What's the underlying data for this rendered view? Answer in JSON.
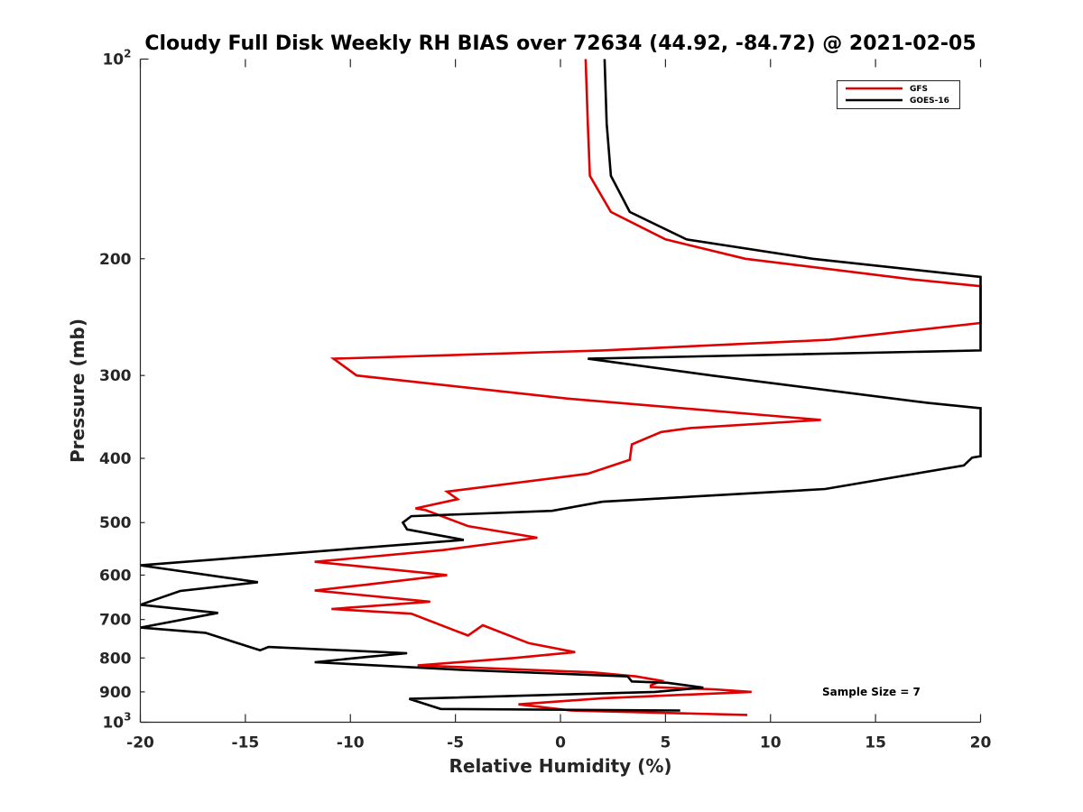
{
  "chart_data": {
    "type": "line",
    "title": "Cloudy Full Disk Weekly RH BIAS over 72634 (44.92, -84.72) @ 2021-02-05",
    "xlabel": "Relative Humidity (%)",
    "ylabel": "Pressure (mb)",
    "xlim": [
      -20,
      20
    ],
    "ylim": [
      100,
      1000
    ],
    "y_scale": "log",
    "y_reversed": true,
    "grid": false,
    "legend_position": "top-right",
    "x_ticks": [
      -20,
      -15,
      -10,
      -5,
      0,
      5,
      10,
      15,
      20
    ],
    "x_tick_labels": [
      "-20",
      "-15",
      "-10",
      "-5",
      "0",
      "5",
      "10",
      "15",
      "20"
    ],
    "y_ticks": [
      200,
      300,
      400,
      500,
      600,
      700,
      800,
      900
    ],
    "y_tick_labels": [
      "200",
      "300",
      "400",
      "500",
      "600",
      "700",
      "800",
      "900"
    ],
    "y_major_ticks": [
      {
        "value": 100,
        "base": "10",
        "exp": "2"
      },
      {
        "value": 1000,
        "base": "10",
        "exp": "3"
      }
    ],
    "annotation": "Sample Size = 7",
    "series": [
      {
        "name": "GFS",
        "color": "#e00000",
        "points": [
          [
            1.2,
            100
          ],
          [
            1.3,
            125
          ],
          [
            1.4,
            150
          ],
          [
            2.4,
            170
          ],
          [
            5.0,
            187
          ],
          [
            8.8,
            200
          ],
          [
            16.8,
            215
          ],
          [
            20,
            220
          ],
          [
            20,
            250
          ],
          [
            12.8,
            265
          ],
          [
            2.0,
            275
          ],
          [
            -10.8,
            283
          ],
          [
            -9.7,
            300
          ],
          [
            0.3,
            325
          ],
          [
            12.4,
            350
          ],
          [
            6.2,
            360
          ],
          [
            4.8,
            365
          ],
          [
            3.4,
            381
          ],
          [
            3.3,
            402
          ],
          [
            1.3,
            422
          ],
          [
            -5.4,
            449
          ],
          [
            -4.9,
            461
          ],
          [
            -6.9,
            476
          ],
          [
            -6.4,
            479
          ],
          [
            -4.4,
            506
          ],
          [
            -1.1,
            527
          ],
          [
            -5.6,
            550
          ],
          [
            -11.7,
            573
          ],
          [
            -5.4,
            600
          ],
          [
            -9.2,
            620
          ],
          [
            -11.7,
            633
          ],
          [
            -6.2,
            658
          ],
          [
            -10.9,
            675
          ],
          [
            -7.1,
            686
          ],
          [
            -4.4,
            740
          ],
          [
            -3.7,
            714
          ],
          [
            -1.5,
            760
          ],
          [
            0.7,
            784
          ],
          [
            -2.2,
            800
          ],
          [
            -6.8,
            821
          ],
          [
            -3.0,
            830
          ],
          [
            1.5,
            841
          ],
          [
            3.6,
            853
          ],
          [
            4.8,
            866
          ],
          [
            4.3,
            880
          ],
          [
            4.3,
            885
          ],
          [
            7.3,
            892
          ],
          [
            9.1,
            900
          ],
          [
            2.0,
            920
          ],
          [
            -2.0,
            940
          ],
          [
            0.5,
            960
          ],
          [
            8.9,
            975
          ]
        ]
      },
      {
        "name": "GOES-16",
        "color": "#000000",
        "points": [
          [
            2.1,
            100
          ],
          [
            2.2,
            125
          ],
          [
            2.4,
            150
          ],
          [
            3.3,
            170
          ],
          [
            6.0,
            187
          ],
          [
            12.0,
            200
          ],
          [
            20,
            213
          ],
          [
            20,
            275
          ],
          [
            1.3,
            283
          ],
          [
            7.2,
            300
          ],
          [
            17.5,
            330
          ],
          [
            20,
            336
          ],
          [
            20,
            397
          ],
          [
            19.6,
            399
          ],
          [
            19.2,
            410
          ],
          [
            12.6,
            445
          ],
          [
            2.0,
            465
          ],
          [
            -0.4,
            480
          ],
          [
            -7.1,
            489
          ],
          [
            -7.5,
            500
          ],
          [
            -7.3,
            512
          ],
          [
            -4.6,
            531
          ],
          [
            -20.0,
            580
          ],
          [
            -14.4,
            615
          ],
          [
            -18.1,
            634
          ],
          [
            -20.0,
            665
          ],
          [
            -16.3,
            684
          ],
          [
            -20.0,
            720
          ],
          [
            -16.9,
            733
          ],
          [
            -14.3,
            779
          ],
          [
            -13.9,
            770
          ],
          [
            -7.3,
            787
          ],
          [
            -9.2,
            797
          ],
          [
            -11.7,
            812
          ],
          [
            -4.6,
            834
          ],
          [
            3.2,
            853
          ],
          [
            3.4,
            868
          ],
          [
            5.1,
            872
          ],
          [
            6.8,
            887
          ],
          [
            4.5,
            900
          ],
          [
            -7.2,
            922
          ],
          [
            -5.7,
            955
          ],
          [
            5.7,
            960
          ]
        ]
      }
    ]
  }
}
